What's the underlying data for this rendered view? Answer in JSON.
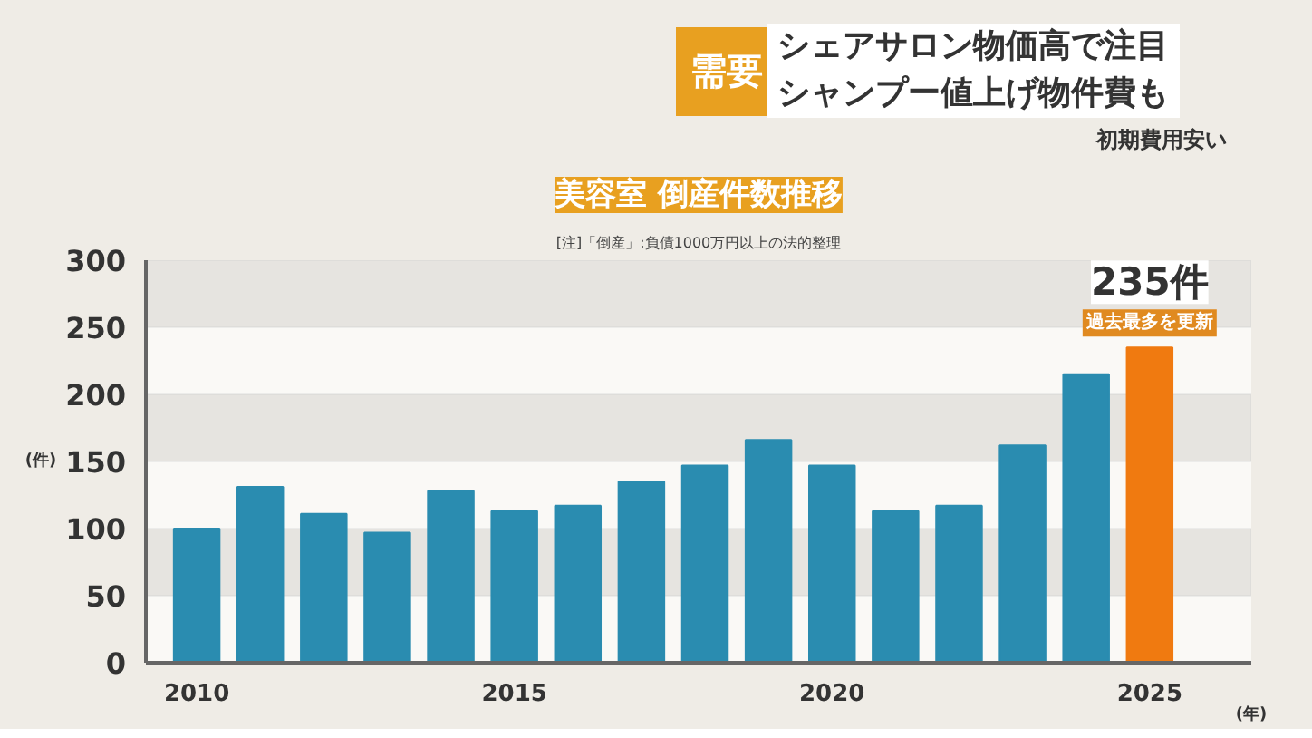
{
  "chart_data": {
    "type": "bar",
    "title": "美容室 倒産件数推移",
    "subtitle": "[注]「倒産」:負債1000万円以上の法的整理",
    "categories": [
      "2010",
      null,
      null,
      null,
      null,
      "2015",
      null,
      null,
      null,
      null,
      "2020",
      null,
      null,
      null,
      null,
      "2025"
    ],
    "values": [
      100,
      131,
      111,
      97,
      128,
      113,
      117,
      135,
      147,
      166,
      147,
      113,
      117,
      162,
      215,
      235
    ],
    "colors": [
      "#2a8cb0",
      "#2a8cb0",
      "#2a8cb0",
      "#2a8cb0",
      "#2a8cb0",
      "#2a8cb0",
      "#2a8cb0",
      "#2a8cb0",
      "#2a8cb0",
      "#2a8cb0",
      "#2a8cb0",
      "#2a8cb0",
      "#2a8cb0",
      "#2a8cb0",
      "#2a8cb0",
      "#f07a10"
    ],
    "xlabel": "(年)",
    "ylabel": "(件)",
    "ylim": [
      0,
      300
    ],
    "yticks": [
      0,
      50,
      100,
      150,
      200,
      250,
      300
    ],
    "grid": false,
    "bands": [
      {
        "axis": "y",
        "from": 50,
        "to": 100,
        "color": "#e6e4e0"
      },
      {
        "axis": "y",
        "from": 150,
        "to": 200,
        "color": "#e6e4e0"
      },
      {
        "axis": "y",
        "from": 250,
        "to": 300,
        "color": "#e6e4e0"
      }
    ],
    "annotations": [
      {
        "text": "235件",
        "x": "2025",
        "y": 235
      },
      {
        "text": "過去最多を更新",
        "x": "2025",
        "y": 235
      },
      "需要",
      "シェアサロン物価高で注目",
      "シャンプー値上げ物件費も",
      "初期費用安い"
    ]
  }
}
